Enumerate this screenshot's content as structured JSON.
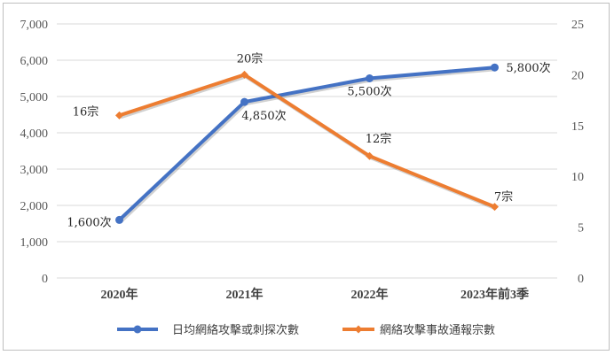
{
  "chart_data": {
    "type": "line",
    "categories": [
      "2020年",
      "2021年",
      "2022年",
      "2023年前3季"
    ],
    "series": [
      {
        "name": "日均網絡攻擊或刺探次數",
        "axis": "left",
        "color": "#4472C4",
        "marker": "circle",
        "values": [
          1600,
          4850,
          5500,
          5800
        ],
        "labels": [
          "1,600次",
          "4,850次",
          "5,500次",
          "5,800次"
        ]
      },
      {
        "name": "網絡攻擊事故通報宗數",
        "axis": "right",
        "color": "#ED7D31",
        "marker": "diamond",
        "values": [
          16,
          20,
          12,
          7
        ],
        "labels": [
          "16宗",
          "20宗",
          "12宗",
          "7宗"
        ]
      }
    ],
    "y_left": {
      "ylim": [
        0,
        7000
      ],
      "ticks": [
        0,
        1000,
        2000,
        3000,
        4000,
        5000,
        6000,
        7000
      ],
      "tick_labels": [
        "0",
        "1,000",
        "2,000",
        "3,000",
        "4,000",
        "5,000",
        "6,000",
        "7,000"
      ]
    },
    "y_right": {
      "ylim": [
        0,
        25
      ],
      "ticks": [
        0,
        5,
        10,
        15,
        20,
        25
      ],
      "tick_labels": [
        "0",
        "5",
        "10",
        "15",
        "20",
        "25"
      ]
    },
    "grid": true,
    "legend": "bottom"
  }
}
